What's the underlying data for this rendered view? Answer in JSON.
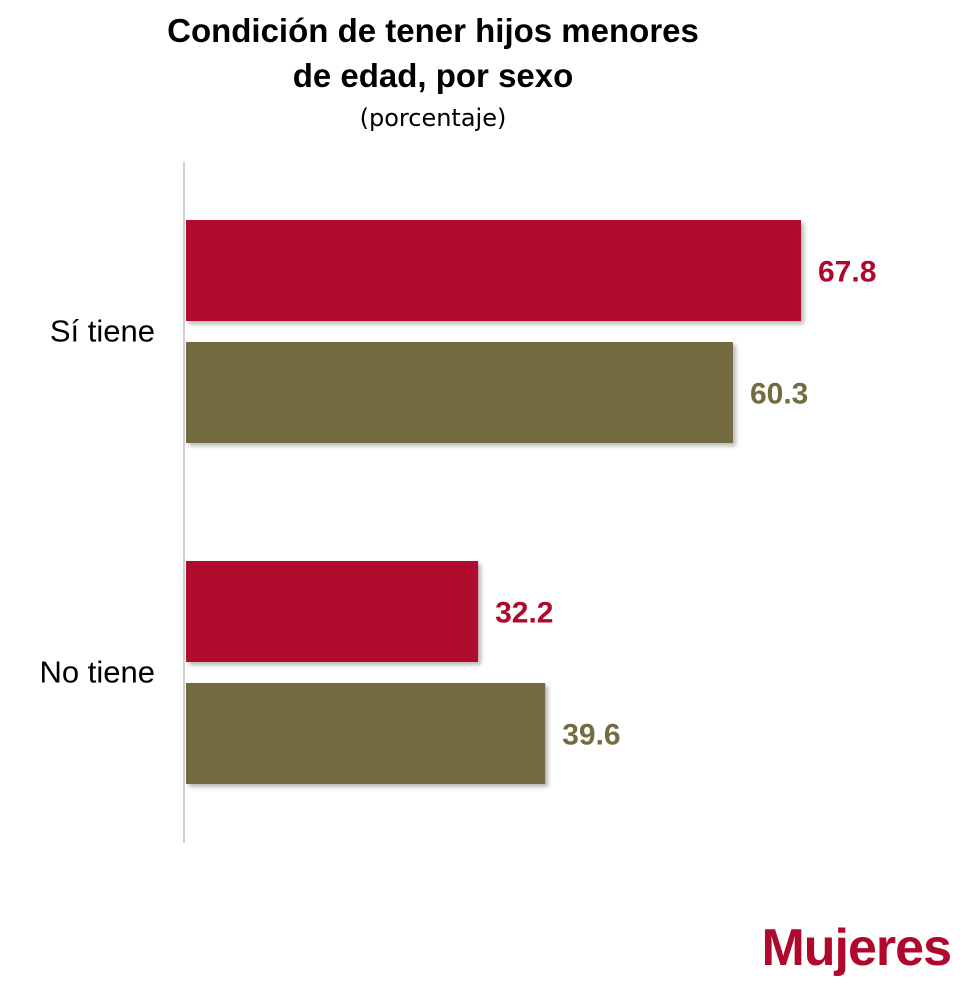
{
  "chart_data": {
    "type": "bar",
    "orientation": "horizontal",
    "title": "Condición de tener hijos menores\nde edad, por sexo",
    "subtitle": "(porcentaje)",
    "categories": [
      "Sí tiene",
      "No tiene"
    ],
    "series": [
      {
        "color": "#b0072d",
        "values": [
          67.8,
          32.2
        ]
      },
      {
        "color": "#736b42",
        "values": [
          60.3,
          39.6
        ]
      }
    ],
    "xlim": [
      0,
      70
    ],
    "grid": false,
    "legend": "none"
  },
  "brand": {
    "label": "Mujeres",
    "color": "#b0072d"
  }
}
